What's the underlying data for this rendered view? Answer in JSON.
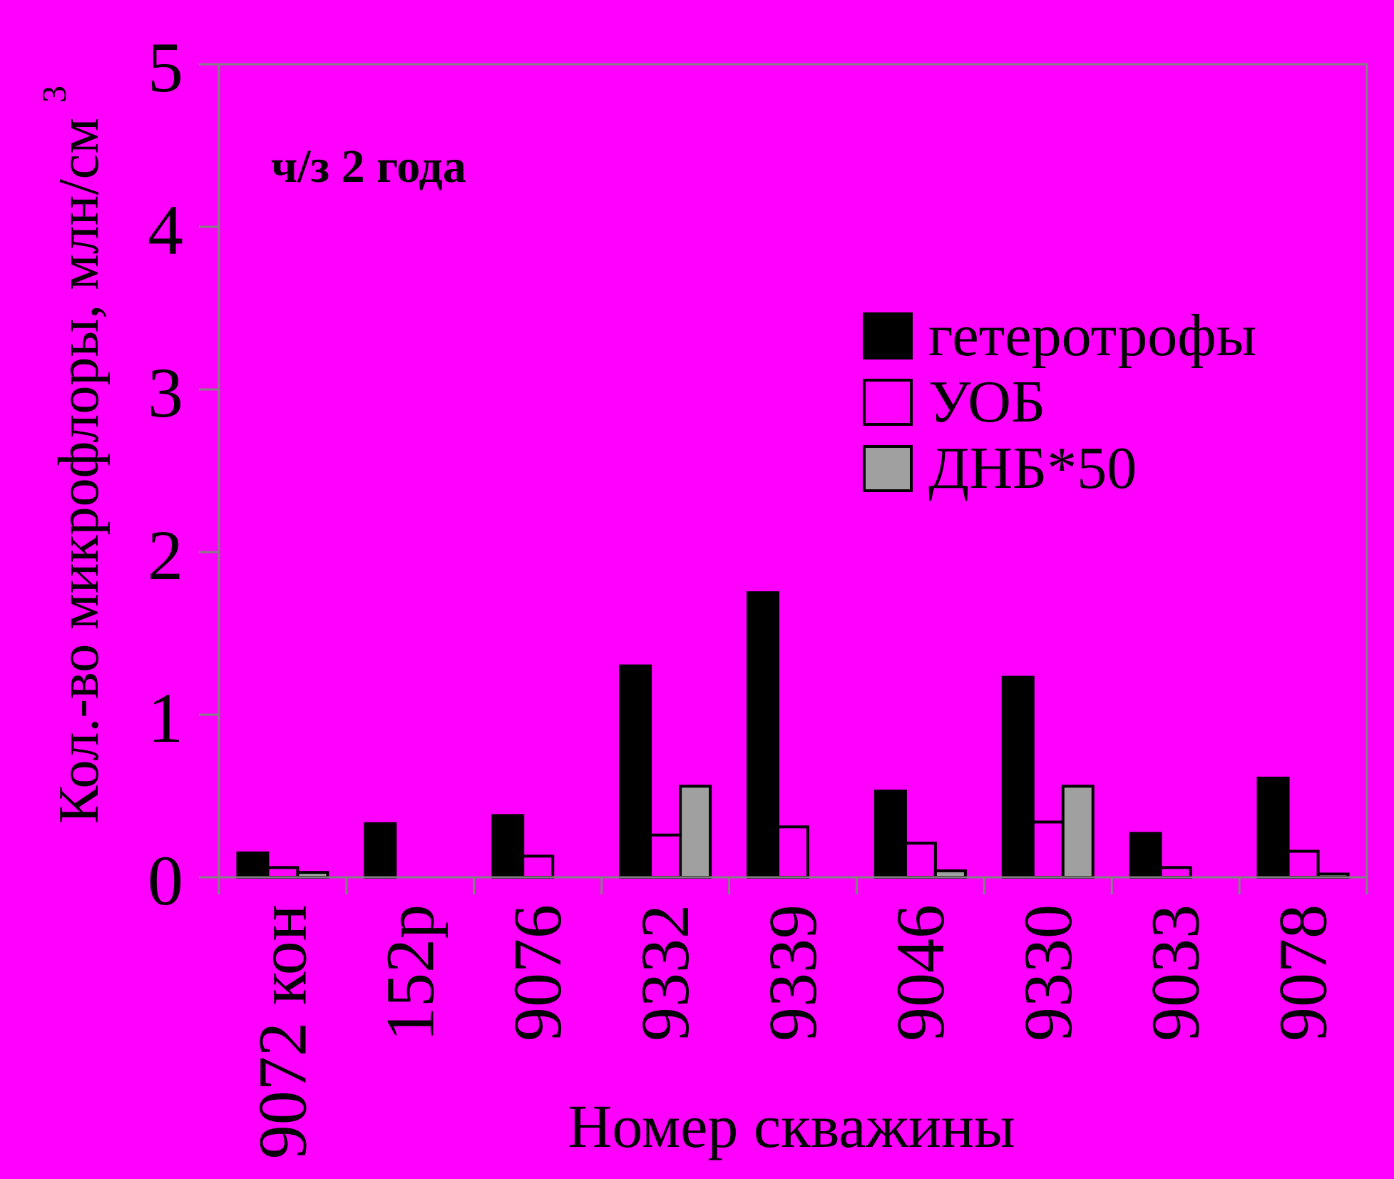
{
  "chart_data": {
    "type": "bar",
    "title": "ч/з 2 года",
    "xlabel": "Номер скважины",
    "ylabel": "Кол.-во микрофлоры, млн/см",
    "ylabel_superscript": "3",
    "ylim": [
      0,
      5
    ],
    "yticks": [
      "0",
      "1",
      "2",
      "3",
      "4",
      "5"
    ],
    "grid": false,
    "legend_position": "top-right",
    "categories": [
      "9072 кон",
      "152р",
      "9076",
      "9332",
      "9339",
      "9046",
      "9330",
      "9033",
      "9078"
    ],
    "series": [
      {
        "name": "гетеротрофы",
        "color": "#000000",
        "values": [
          0.15,
          0.33,
          0.38,
          1.3,
          1.75,
          0.53,
          1.23,
          0.27,
          0.61
        ]
      },
      {
        "name": "УОБ",
        "color": "#FF00FF",
        "values": [
          0.06,
          0,
          0.13,
          0.26,
          0.31,
          0.21,
          0.34,
          0.06,
          0.16
        ]
      },
      {
        "name": "ДНБ*50",
        "color": "#A0A0A0",
        "values": [
          0.03,
          0,
          0,
          0.56,
          0,
          0.04,
          0.56,
          0,
          0.02
        ]
      }
    ]
  }
}
